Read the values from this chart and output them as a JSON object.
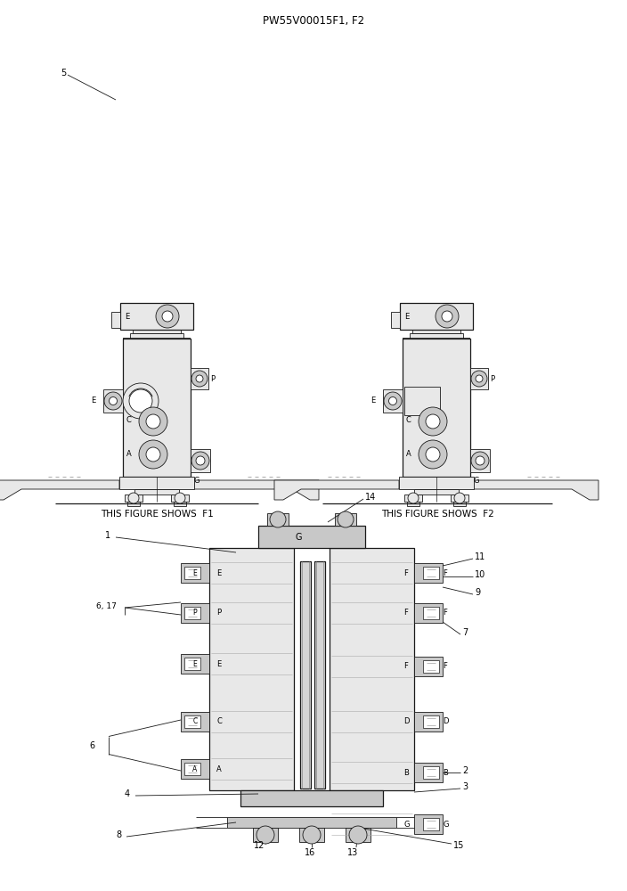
{
  "title": "PW55V00015F1, F2",
  "background_color": "#ffffff",
  "fig_width": 7.04,
  "fig_height": 10.0,
  "dpi": 100,
  "caption_f1": "THIS FIGURE SHOWS  F1",
  "caption_f2": "THIS FIGURE SHOWS  F2",
  "line_color": "#1a1a1a",
  "gray_fill": "#c8c8c8",
  "light_gray": "#e8e8e8",
  "white": "#ffffff",
  "dark_gray": "#888888"
}
